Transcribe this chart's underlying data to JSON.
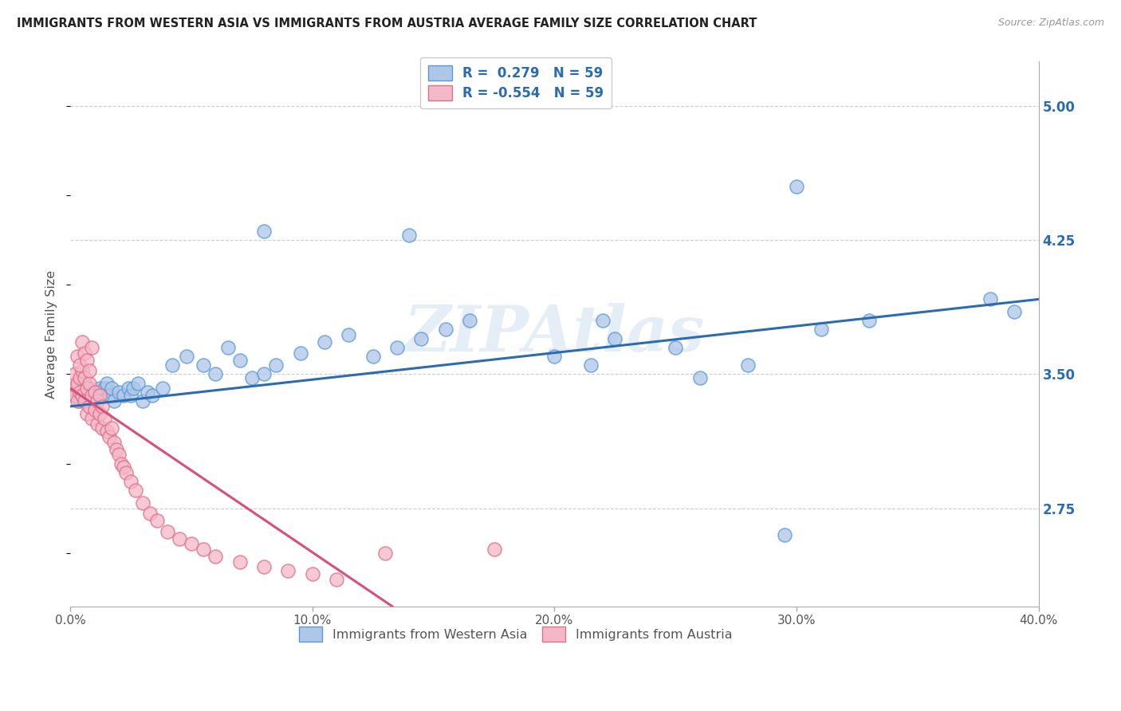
{
  "title": "IMMIGRANTS FROM WESTERN ASIA VS IMMIGRANTS FROM AUSTRIA AVERAGE FAMILY SIZE CORRELATION CHART",
  "source": "Source: ZipAtlas.com",
  "ylabel": "Average Family Size",
  "xlim": [
    0.0,
    0.4
  ],
  "ylim": [
    2.2,
    5.25
  ],
  "yticks": [
    2.75,
    3.5,
    4.25,
    5.0
  ],
  "xticks": [
    0.0,
    0.1,
    0.2,
    0.3,
    0.4
  ],
  "xticklabels": [
    "0.0%",
    "10.0%",
    "20.0%",
    "30.0%",
    "40.0%"
  ],
  "R_blue": 0.279,
  "R_pink": -0.554,
  "N": 59,
  "blue_color": "#aec6e8",
  "blue_edge_color": "#5b9bd5",
  "pink_color": "#f4b8c8",
  "pink_edge_color": "#e0708a",
  "blue_line_color": "#2b6cb0",
  "pink_line_color": "#d94f7a",
  "legend_text_color": "#2b6cb0",
  "axis_text_color": "#555555",
  "grid_color": "#cccccc",
  "background_color": "#ffffff",
  "watermark": "ZIPAtlas",
  "blue_scatter_x": [
    0.002,
    0.003,
    0.004,
    0.005,
    0.006,
    0.007,
    0.008,
    0.009,
    0.01,
    0.011,
    0.012,
    0.013,
    0.014,
    0.015,
    0.016,
    0.017,
    0.018,
    0.02,
    0.022,
    0.024,
    0.025,
    0.026,
    0.028,
    0.03,
    0.032,
    0.034,
    0.038,
    0.042,
    0.048,
    0.055,
    0.06,
    0.065,
    0.07,
    0.075,
    0.08,
    0.085,
    0.095,
    0.105,
    0.115,
    0.125,
    0.135,
    0.145,
    0.155,
    0.165,
    0.08,
    0.14,
    0.22,
    0.28,
    0.3,
    0.31,
    0.33,
    0.38,
    0.39,
    0.2,
    0.215,
    0.225,
    0.25,
    0.26,
    0.295
  ],
  "blue_scatter_y": [
    3.38,
    3.42,
    3.35,
    3.4,
    3.45,
    3.38,
    3.42,
    3.35,
    3.4,
    3.38,
    3.42,
    3.38,
    3.42,
    3.45,
    3.38,
    3.42,
    3.35,
    3.4,
    3.38,
    3.42,
    3.38,
    3.42,
    3.45,
    3.35,
    3.4,
    3.38,
    3.42,
    3.55,
    3.6,
    3.55,
    3.5,
    3.65,
    3.58,
    3.48,
    3.5,
    3.55,
    3.62,
    3.68,
    3.72,
    3.6,
    3.65,
    3.7,
    3.75,
    3.8,
    4.3,
    4.28,
    3.8,
    3.55,
    4.55,
    3.75,
    3.8,
    3.92,
    3.85,
    3.6,
    3.55,
    3.7,
    3.65,
    3.48,
    2.6
  ],
  "pink_scatter_x": [
    0.001,
    0.002,
    0.002,
    0.003,
    0.003,
    0.004,
    0.004,
    0.005,
    0.005,
    0.006,
    0.006,
    0.007,
    0.007,
    0.008,
    0.008,
    0.009,
    0.009,
    0.01,
    0.01,
    0.011,
    0.011,
    0.012,
    0.012,
    0.013,
    0.013,
    0.014,
    0.015,
    0.016,
    0.017,
    0.018,
    0.019,
    0.02,
    0.021,
    0.022,
    0.023,
    0.025,
    0.027,
    0.03,
    0.033,
    0.036,
    0.04,
    0.045,
    0.05,
    0.055,
    0.06,
    0.07,
    0.08,
    0.09,
    0.1,
    0.11,
    0.003,
    0.004,
    0.005,
    0.006,
    0.007,
    0.008,
    0.009,
    0.13,
    0.175
  ],
  "pink_scatter_y": [
    3.42,
    3.5,
    3.38,
    3.45,
    3.35,
    3.48,
    3.4,
    3.52,
    3.38,
    3.48,
    3.35,
    3.42,
    3.28,
    3.45,
    3.32,
    3.38,
    3.25,
    3.4,
    3.3,
    3.35,
    3.22,
    3.38,
    3.28,
    3.32,
    3.2,
    3.25,
    3.18,
    3.15,
    3.2,
    3.12,
    3.08,
    3.05,
    3.0,
    2.98,
    2.95,
    2.9,
    2.85,
    2.78,
    2.72,
    2.68,
    2.62,
    2.58,
    2.55,
    2.52,
    2.48,
    2.45,
    2.42,
    2.4,
    2.38,
    2.35,
    3.6,
    3.55,
    3.68,
    3.62,
    3.58,
    3.52,
    3.65,
    2.5,
    2.52
  ],
  "blue_trendline_x": [
    0.0,
    0.4
  ],
  "blue_trendline_y": [
    3.32,
    3.92
  ],
  "pink_trendline_x": [
    0.0,
    0.133
  ],
  "pink_trendline_y": [
    3.42,
    2.2
  ]
}
